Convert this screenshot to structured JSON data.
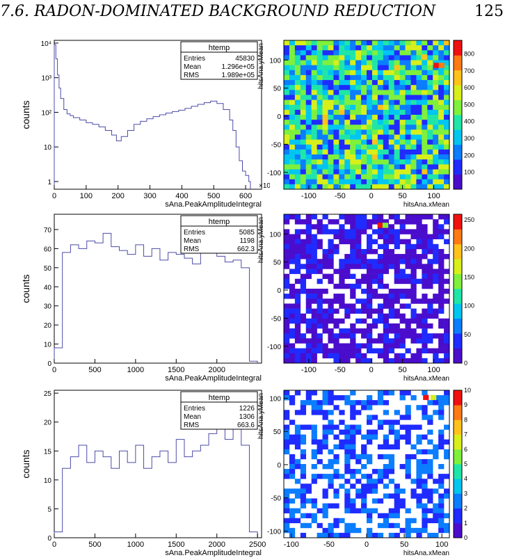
{
  "header": {
    "section_title": "7.6.  RADON-DOMINATED BACKGROUND REDUCTION",
    "page_number": "125"
  },
  "colors": {
    "histogram_line": "#4b4ba8",
    "palette": [
      "#4a0dcc",
      "#1f2bff",
      "#0b7dff",
      "#00c6f0",
      "#1fe6a8",
      "#7ff03c",
      "#d8ef1a",
      "#ffc21a",
      "#ff7a14",
      "#f01010"
    ]
  },
  "chart_data": [
    {
      "type": "line",
      "id": "hist-1",
      "xlabel": "sAna.PeakAmplitudeIntegral",
      "ylabel": "counts",
      "x_multiplier_label": "×10³",
      "yscale": "log",
      "xlim": [
        0,
        650
      ],
      "ylim": [
        0.6,
        12000
      ],
      "xticks": [
        0,
        100,
        200,
        300,
        400,
        500,
        600
      ],
      "xtick_labels": [
        "0",
        "100",
        "200",
        "300",
        "400",
        "500",
        "600"
      ],
      "yticks": [
        1,
        10,
        100,
        1000,
        10000
      ],
      "ytick_labels": [
        "1",
        "10",
        "10²",
        "10³",
        "10⁴"
      ],
      "stats": {
        "title": "htemp",
        "rows": [
          [
            "Entries",
            "45830"
          ],
          [
            "Mean",
            "1.296e+05"
          ],
          [
            "RMS",
            "1.989e+05"
          ]
        ]
      },
      "x": [
        0,
        5,
        10,
        15,
        20,
        30,
        40,
        50,
        60,
        80,
        100,
        120,
        140,
        160,
        180,
        195,
        210,
        230,
        250,
        270,
        290,
        310,
        330,
        350,
        370,
        390,
        410,
        430,
        450,
        470,
        490,
        510,
        530,
        550,
        560,
        570,
        580,
        590,
        600,
        610
      ],
      "values": [
        9000,
        3500,
        1200,
        500,
        250,
        120,
        90,
        80,
        70,
        60,
        50,
        45,
        38,
        30,
        22,
        15,
        20,
        30,
        45,
        55,
        65,
        75,
        85,
        95,
        105,
        115,
        130,
        150,
        170,
        190,
        210,
        180,
        120,
        60,
        30,
        10,
        4,
        2,
        1.5,
        1
      ]
    },
    {
      "type": "heatmap",
      "id": "map-1",
      "xlabel": "hitsAna.xMean",
      "ylabel": "hitsAna.yMean",
      "xlim": [
        -140,
        125
      ],
      "ylim": [
        -130,
        135
      ],
      "zlim": [
        0,
        880
      ],
      "xticks": [
        -100,
        -50,
        0,
        50,
        100
      ],
      "yticks": [
        -100,
        -50,
        0,
        50,
        100
      ],
      "zticks": [
        100,
        200,
        300,
        400,
        500,
        600,
        700,
        800
      ],
      "bins": 30,
      "fill": 1.0,
      "level_range": [
        100,
        620
      ],
      "hot_cells": [
        {
          "x": 100,
          "y": 95,
          "v": 860
        },
        {
          "x": 108,
          "y": 95,
          "v": 780
        },
        {
          "x": 80,
          "y": 110,
          "v": 700
        }
      ]
    },
    {
      "type": "line",
      "id": "hist-2",
      "xlabel": "sAna.PeakAmplitudeIntegral",
      "ylabel": "counts",
      "yscale": "linear",
      "xlim": [
        0,
        2550
      ],
      "ylim": [
        0,
        78
      ],
      "xticks": [
        0,
        500,
        1000,
        1500,
        2000
      ],
      "xtick_labels": [
        "0",
        "500",
        "1000",
        "1500",
        "2000"
      ],
      "yticks": [
        0,
        10,
        20,
        30,
        40,
        50,
        60,
        70
      ],
      "ytick_labels": [
        "0",
        "10",
        "20",
        "30",
        "40",
        "50",
        "60",
        "70"
      ],
      "stats": {
        "title": "htemp",
        "rows": [
          [
            "Entries",
            "5085"
          ],
          [
            "Mean",
            "1198"
          ],
          [
            "RMS",
            "662.3"
          ]
        ]
      },
      "x": [
        0,
        100,
        200,
        300,
        400,
        500,
        600,
        700,
        800,
        900,
        1000,
        1100,
        1200,
        1300,
        1400,
        1500,
        1600,
        1700,
        1800,
        1900,
        2000,
        2100,
        2200,
        2300,
        2400
      ],
      "values": [
        8,
        58,
        62,
        60,
        64,
        63,
        68,
        61,
        59,
        57,
        62,
        56,
        60,
        54,
        58,
        57,
        55,
        52,
        58,
        60,
        56,
        53,
        54,
        50,
        1
      ]
    },
    {
      "type": "heatmap",
      "id": "map-2",
      "xlabel": "hitsAna.xMean",
      "ylabel": "hitsAna.yMean",
      "xlim": [
        -140,
        125
      ],
      "ylim": [
        -130,
        135
      ],
      "zlim": [
        0,
        260
      ],
      "xticks": [
        -100,
        -50,
        0,
        50,
        100
      ],
      "yticks": [
        -100,
        -50,
        0,
        50,
        100
      ],
      "zticks": [
        0,
        50,
        100,
        150,
        200,
        250
      ],
      "bins": 30,
      "fill": 0.72,
      "level_range": [
        10,
        35
      ],
      "hot_cells": [
        {
          "x": 10,
          "y": 120,
          "v": 240
        },
        {
          "x": 18,
          "y": 120,
          "v": 140
        }
      ]
    },
    {
      "type": "line",
      "id": "hist-3",
      "xlabel": "sAna.PeakAmplitudeIntegral",
      "ylabel": "counts",
      "yscale": "linear",
      "xlim": [
        0,
        2550
      ],
      "ylim": [
        0,
        25.5
      ],
      "xticks": [
        0,
        500,
        1000,
        1500,
        2000,
        2500
      ],
      "xtick_labels": [
        "0",
        "500",
        "1000",
        "1500",
        "2000",
        "2500"
      ],
      "yticks": [
        0,
        5,
        10,
        15,
        20,
        25
      ],
      "ytick_labels": [
        "0",
        "5",
        "10",
        "15",
        "20",
        "25"
      ],
      "stats": {
        "title": "htemp",
        "rows": [
          [
            "Entries",
            "1226"
          ],
          [
            "Mean",
            "1306"
          ],
          [
            "RMS",
            "663.6"
          ]
        ]
      },
      "x": [
        0,
        100,
        200,
        300,
        400,
        500,
        600,
        700,
        800,
        900,
        1000,
        1100,
        1200,
        1300,
        1400,
        1500,
        1600,
        1700,
        1800,
        1900,
        2000,
        2100,
        2200,
        2300,
        2400
      ],
      "values": [
        1,
        12,
        14,
        16,
        13,
        15,
        14,
        12,
        15,
        13,
        16,
        12,
        14,
        15,
        13,
        17,
        14,
        15,
        16,
        18,
        19,
        17,
        20,
        16,
        1
      ]
    },
    {
      "type": "heatmap",
      "id": "map-3",
      "xlabel": "hitsAna.xMean",
      "ylabel": "hitsAna.yMean",
      "xlim": [
        -110,
        110
      ],
      "ylim": [
        -110,
        112
      ],
      "zlim": [
        0,
        10
      ],
      "xticks": [
        -100,
        -50,
        0,
        50,
        100
      ],
      "yticks": [
        -100,
        -50,
        0,
        50,
        100
      ],
      "zticks": [
        0,
        1,
        2,
        3,
        4,
        5,
        6,
        7,
        8,
        9,
        10
      ],
      "bins": 30,
      "fill": 0.5,
      "level_range": [
        1,
        3
      ],
      "hot_cells": [
        {
          "x": 75,
          "y": 105,
          "v": 9
        },
        {
          "x": 85,
          "y": 105,
          "v": 6
        }
      ]
    }
  ]
}
